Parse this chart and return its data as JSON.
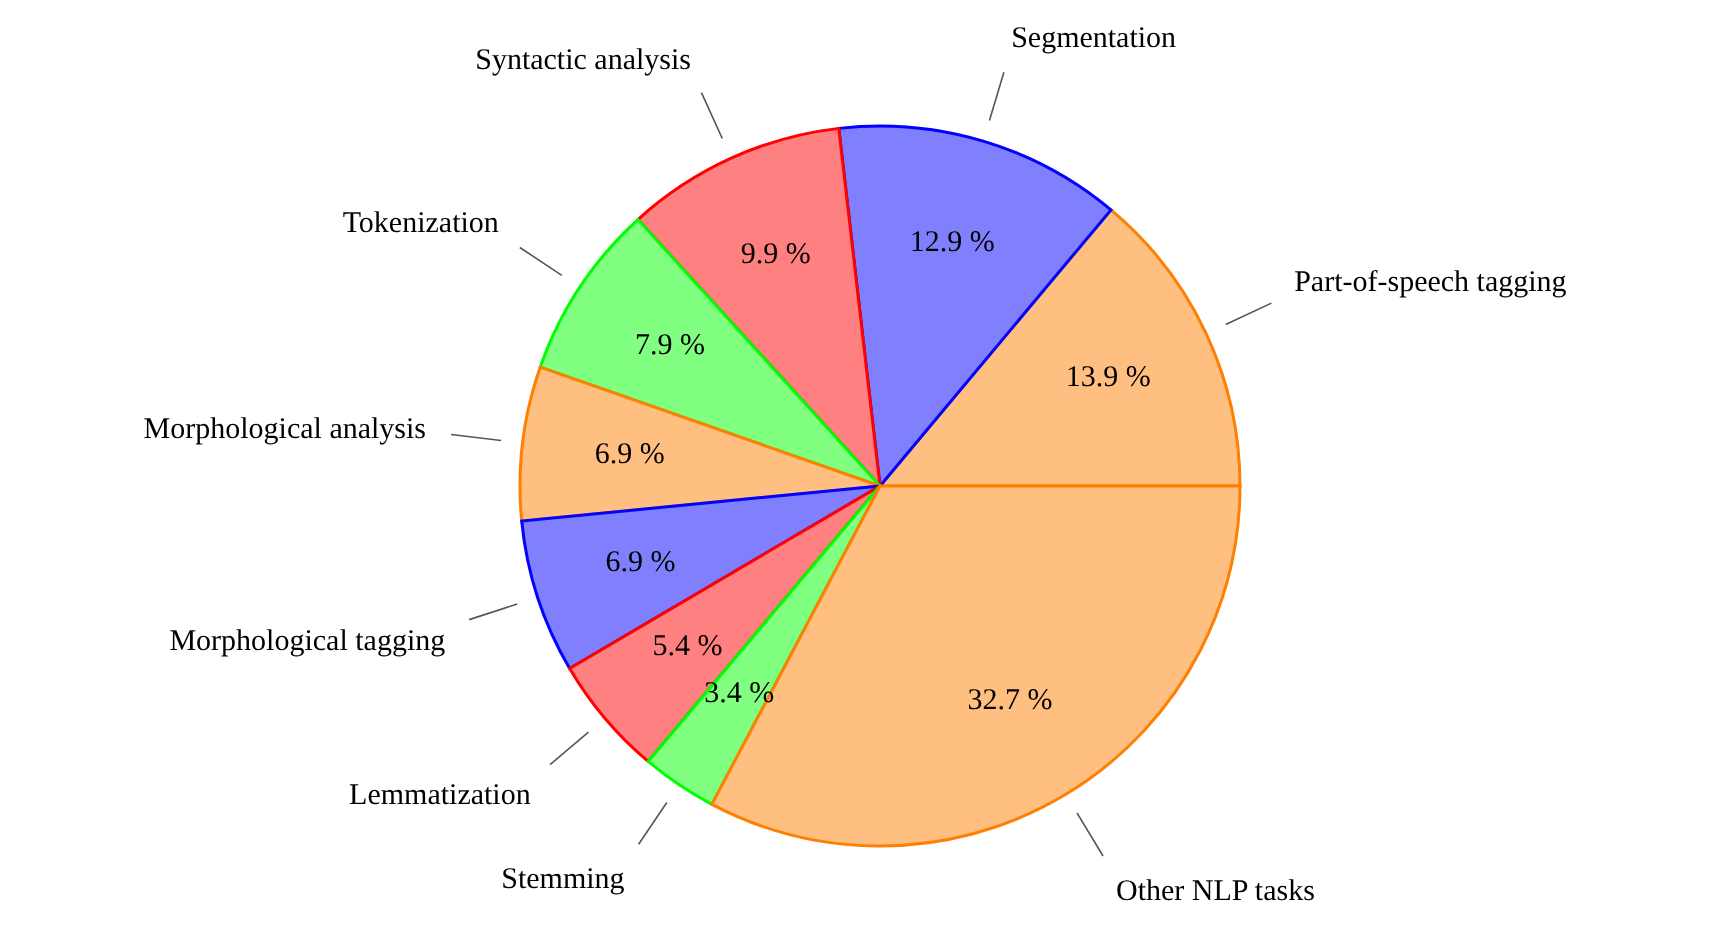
{
  "chart_data": {
    "type": "pie",
    "categories": [
      "Part-of-speech tagging",
      "Segmentation",
      "Syntactic analysis",
      "Tokenization",
      "Morphological analysis",
      "Morphological tagging",
      "Lemmatization",
      "Stemming",
      "Other NLP tasks"
    ],
    "values": [
      13.9,
      12.9,
      9.9,
      7.9,
      6.9,
      6.9,
      5.4,
      3.4,
      32.7
    ],
    "colors": [
      "#ffbf80",
      "#8080ff",
      "#ff8080",
      "#80ff80",
      "#ffbf80",
      "#8080ff",
      "#ff8080",
      "#80ff80",
      "#ffbf80"
    ],
    "value_labels": [
      "13.9 %",
      "12.9 %",
      "9.9 %",
      "7.9 %",
      "6.9 %",
      "6.9 %",
      "5.4 %",
      "3.4 %",
      "32.7 %"
    ]
  }
}
